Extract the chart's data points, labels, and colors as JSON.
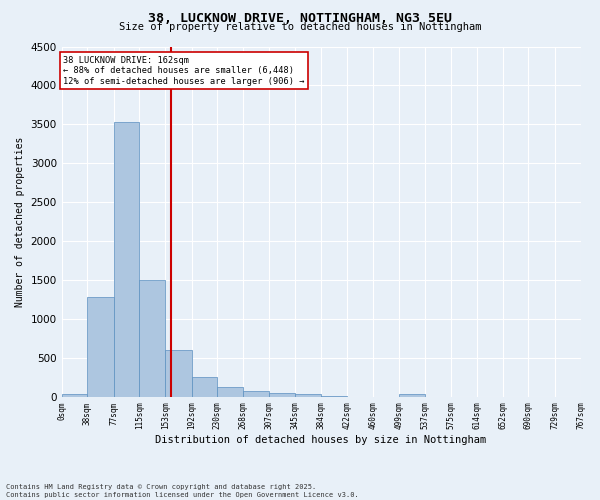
{
  "title": "38, LUCKNOW DRIVE, NOTTINGHAM, NG3 5EU",
  "subtitle": "Size of property relative to detached houses in Nottingham",
  "xlabel": "Distribution of detached houses by size in Nottingham",
  "ylabel": "Number of detached properties",
  "bar_values": [
    30,
    1280,
    3530,
    1500,
    600,
    260,
    130,
    80,
    55,
    30,
    10,
    0,
    0,
    35,
    0,
    0,
    0,
    0,
    0,
    0
  ],
  "bin_labels": [
    "0sqm",
    "38sqm",
    "77sqm",
    "115sqm",
    "153sqm",
    "192sqm",
    "230sqm",
    "268sqm",
    "307sqm",
    "345sqm",
    "384sqm",
    "422sqm",
    "460sqm",
    "499sqm",
    "537sqm",
    "575sqm",
    "614sqm",
    "652sqm",
    "690sqm",
    "729sqm",
    "767sqm"
  ],
  "bin_edges": [
    0,
    38,
    77,
    115,
    153,
    192,
    230,
    268,
    307,
    345,
    384,
    422,
    460,
    499,
    537,
    575,
    614,
    652,
    690,
    729,
    767
  ],
  "bar_color": "#adc6e0",
  "bar_edge_color": "#5a8fc0",
  "vline_x": 162,
  "vline_color": "#cc0000",
  "annotation_text": "38 LUCKNOW DRIVE: 162sqm\n← 88% of detached houses are smaller (6,448)\n12% of semi-detached houses are larger (906) →",
  "annotation_box_color": "#cc0000",
  "ylim": [
    0,
    4500
  ],
  "yticks": [
    0,
    500,
    1000,
    1500,
    2000,
    2500,
    3000,
    3500,
    4000,
    4500
  ],
  "background_color": "#e8f0f8",
  "grid_color": "#ffffff",
  "footer_line1": "Contains HM Land Registry data © Crown copyright and database right 2025.",
  "footer_line2": "Contains public sector information licensed under the Open Government Licence v3.0."
}
